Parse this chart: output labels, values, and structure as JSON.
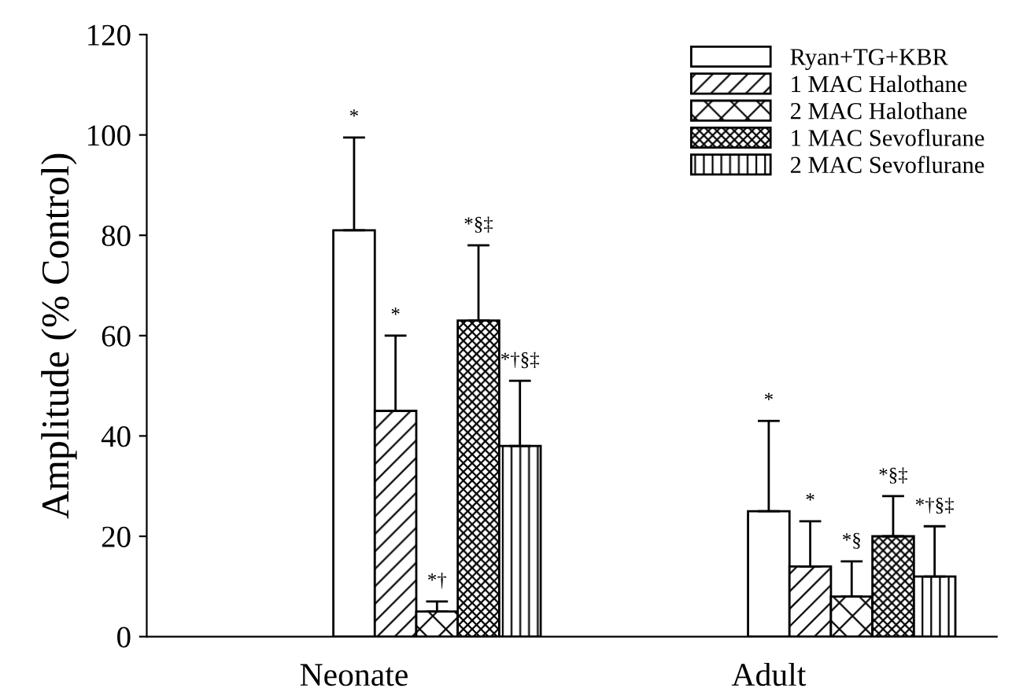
{
  "chart_data": {
    "type": "bar",
    "ylabel": "Amplitude (% Control)",
    "categories": [
      "Neonate",
      "Adult"
    ],
    "series": [
      {
        "name": "Ryan+TG+KBR",
        "color": "#ffffff",
        "values": [
          81,
          25
        ],
        "errors": [
          [
            81,
            99.5
          ],
          [
            25,
            43
          ]
        ]
      },
      {
        "name": "1 MAC Halothane",
        "color": "#000000",
        "values": [
          45,
          14
        ],
        "errors": [
          [
            45,
            60
          ],
          [
            14,
            23
          ]
        ]
      },
      {
        "name": "2 MAC Halothane",
        "color": "#000000",
        "values": [
          5,
          8
        ],
        "errors": [
          [
            5,
            7
          ],
          [
            8,
            15
          ]
        ]
      },
      {
        "name": "1 MAC Sevoflurane",
        "color": "#000000",
        "values": [
          63,
          20
        ],
        "errors": [
          [
            63,
            78
          ],
          [
            20,
            28
          ]
        ]
      },
      {
        "name": "2 MAC Sevoflurane",
        "color": "#000000",
        "values": [
          38,
          12
        ],
        "errors": [
          [
            38,
            51
          ],
          [
            12,
            22
          ]
        ]
      }
    ],
    "annotations": [
      "*",
      "*",
      "*†",
      "*§‡",
      "*†§‡",
      "*",
      "*",
      "*§",
      "*§‡",
      "*†§‡"
    ],
    "ylim": [
      0,
      120
    ],
    "yticks": [
      0,
      20,
      40,
      60,
      80,
      100,
      120
    ],
    "grid": false,
    "legend": "top right"
  }
}
